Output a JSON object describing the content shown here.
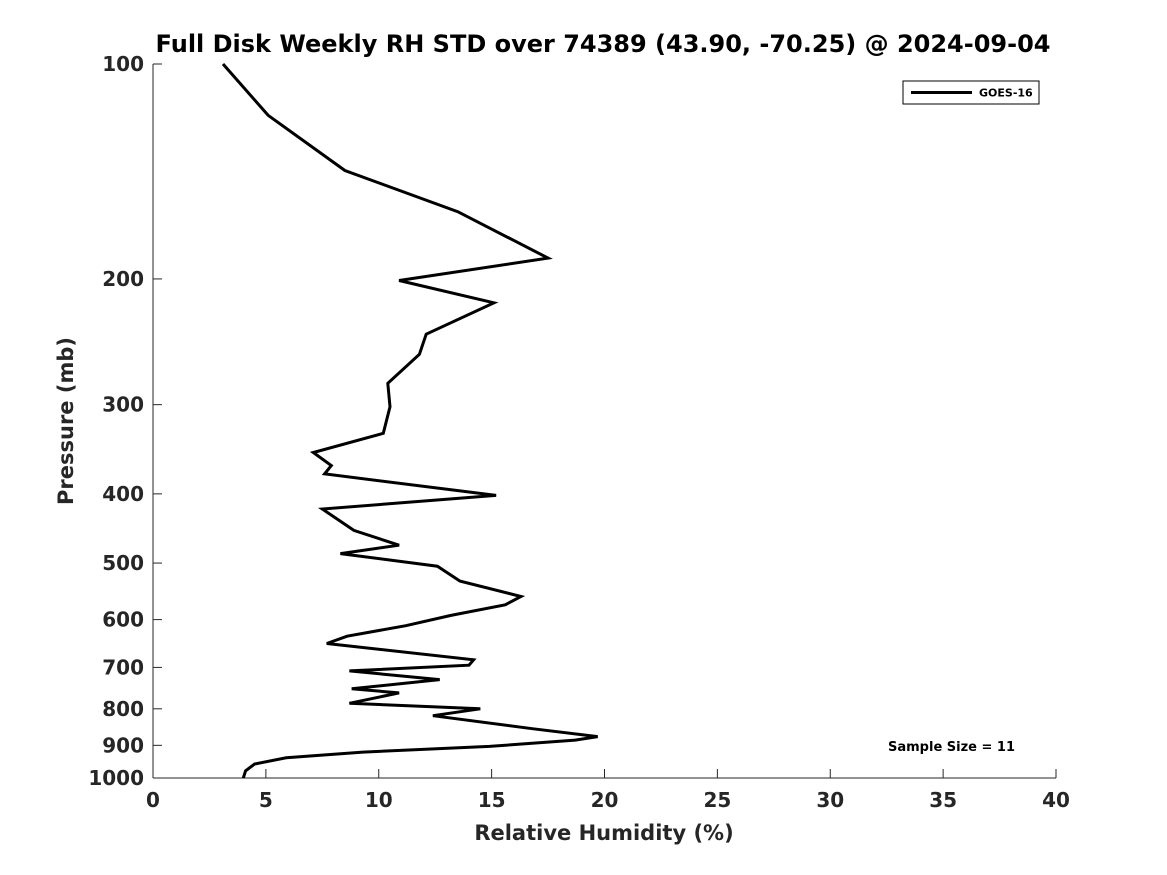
{
  "chart_data": {
    "type": "line",
    "title": "Full Disk Weekly RH STD over 74389 (43.90, -70.25) @ 2024-09-04",
    "xlabel": "Relative Humidity (%)",
    "ylabel": "Pressure (mb)",
    "xlim": [
      0,
      40
    ],
    "ylim": [
      100,
      1000
    ],
    "y_scale": "log",
    "y_reversed": true,
    "x_ticks": [
      0,
      5,
      10,
      15,
      20,
      25,
      30,
      35,
      40
    ],
    "y_ticks": [
      100,
      200,
      300,
      400,
      500,
      600,
      700,
      800,
      900,
      1000
    ],
    "grid": false,
    "legend_position": "top-right",
    "series": [
      {
        "name": "GOES-16",
        "color": "#000000",
        "x": [
          3.1,
          5.1,
          8.5,
          13.5,
          17.5,
          10.9,
          15.1,
          12.1,
          11.8,
          10.4,
          10.5,
          10.2,
          7.1,
          7.9,
          7.6,
          15.2,
          7.5,
          8.9,
          10.9,
          8.3,
          12.6,
          13.6,
          16.3,
          15.6,
          13.2,
          11.2,
          8.6,
          7.7,
          14.2,
          14.0,
          8.7,
          12.7,
          8.8,
          10.9,
          8.7,
          14.5,
          12.4,
          16.8,
          19.7,
          18.7,
          14.9,
          9.3,
          5.9,
          4.5,
          4.1,
          4.0
        ],
        "y": [
          100,
          118,
          141,
          161,
          187,
          201,
          216,
          239,
          255,
          280,
          302,
          329,
          350,
          365,
          375,
          402,
          420,
          450,
          472,
          485,
          505,
          530,
          557,
          572,
          592,
          612,
          633,
          648,
          683,
          695,
          708,
          728,
          750,
          760,
          786,
          800,
          818,
          853,
          875,
          885,
          903,
          920,
          937,
          956,
          977,
          1000
        ]
      }
    ],
    "annotations": [
      "Sample Size = 11"
    ]
  }
}
